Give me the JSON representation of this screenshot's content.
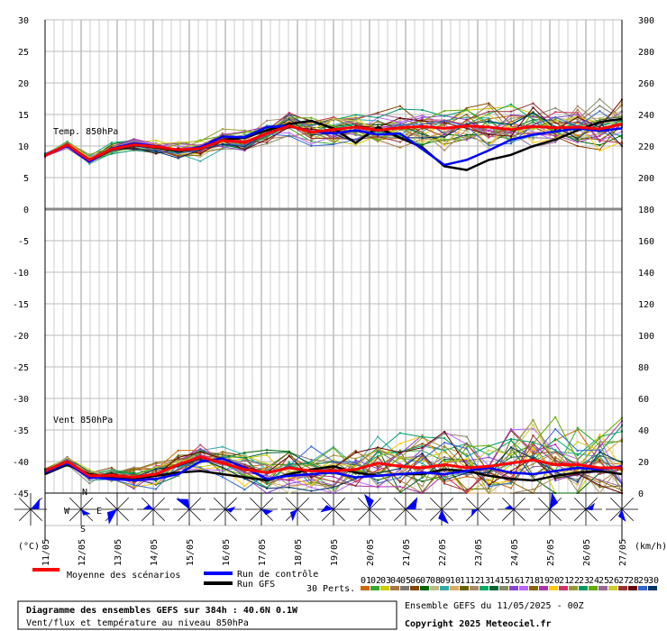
{
  "chart_data": {
    "type": "line",
    "title": "Diagramme des ensembles GEFS sur 384h : 40.6N 0.1W",
    "subtitle": "Vent/flux et température au niveau 850hPa",
    "left_axis": {
      "unit": "(°C)",
      "ticks": [
        30,
        25,
        20,
        15,
        10,
        5,
        0,
        -5,
        -10,
        -15,
        -20,
        -25,
        -30,
        -35,
        -40,
        -45
      ]
    },
    "right_axis": {
      "unit": "(km/h)",
      "ticks": [
        300,
        280,
        260,
        240,
        220,
        200,
        180,
        160,
        140,
        120,
        100,
        80,
        60,
        40,
        20,
        0
      ]
    },
    "dates": [
      "11/05",
      "12/05",
      "13/05",
      "14/05",
      "15/05",
      "16/05",
      "17/05",
      "18/05",
      "19/05",
      "20/05",
      "21/05",
      "22/05",
      "23/05",
      "24/05",
      "25/05",
      "26/05",
      "27/05"
    ],
    "panel_labels": {
      "temp": "Temp. 850hPa",
      "wind": "Vent 850hPa"
    },
    "compass": {
      "n": "N",
      "w": "W",
      "e": "E",
      "s": "S"
    },
    "series": [
      {
        "name": "Moyenne des scénarios",
        "color": "#ff0000",
        "temp": [
          8.5,
          10.2,
          7.8,
          9.5,
          10.2,
          9.9,
          9.4,
          9.6,
          10.9,
          10.6,
          12.0,
          13.2,
          12.2,
          12.6,
          13.0,
          12.5,
          12.9,
          13.1,
          12.8,
          13.2,
          13.0,
          12.6,
          13.1,
          12.9,
          13.0,
          12.7,
          13.5
        ],
        "wind": [
          14,
          20,
          11,
          11,
          10,
          12,
          18,
          23,
          19,
          15,
          13,
          16,
          14,
          14,
          15,
          19,
          17,
          16,
          18,
          16,
          17,
          19,
          21,
          18,
          18,
          16,
          16
        ]
      },
      {
        "name": "Run de contrôle",
        "color": "#0000ff",
        "temp": [
          8.5,
          10.0,
          7.5,
          9.6,
          10.4,
          10.0,
          9.3,
          9.8,
          11.5,
          11.4,
          13.0,
          13.2,
          12.3,
          12.0,
          12.5,
          11.8,
          12.0,
          9.5,
          7.0,
          7.8,
          9.3,
          11.0,
          11.8,
          12.3,
          12.8,
          12.4,
          12.8
        ],
        "wind": [
          13,
          19,
          10,
          9,
          8,
          9,
          12,
          20,
          22,
          16,
          9,
          11,
          12,
          13,
          10,
          11,
          12,
          13,
          12,
          14,
          16,
          13,
          12,
          14,
          16,
          15,
          17
        ]
      },
      {
        "name": "Run GFS",
        "color": "#000000",
        "temp": [
          8.5,
          10.1,
          7.6,
          9.4,
          10.1,
          9.8,
          9.2,
          9.6,
          11.0,
          11.3,
          12.5,
          13.5,
          14.0,
          12.8,
          10.5,
          13.0,
          11.3,
          9.8,
          6.8,
          6.2,
          7.8,
          8.6,
          10.0,
          11.0,
          12.5,
          13.8,
          14.3
        ],
        "wind": [
          12,
          18,
          12,
          10,
          9,
          11,
          13,
          14,
          12,
          10,
          8,
          12,
          15,
          17,
          13,
          11,
          12,
          12,
          15,
          14,
          11,
          9,
          8,
          11,
          13,
          14,
          12
        ]
      }
    ],
    "perturbations_count": 30,
    "perturbation_colors": [
      "#cc6600",
      "#33aa33",
      "#cccc00",
      "#aa7744",
      "#777777",
      "#884400",
      "#006600",
      "#bbbb88",
      "#33aaaa",
      "#ddaa66",
      "#666600",
      "#aa8866",
      "#00aa66",
      "#006633",
      "#888866",
      "#8844cc",
      "#bb66ff",
      "#886600",
      "#aa33aa",
      "#ffcc00",
      "#cc3366",
      "#999933",
      "#009966",
      "#66aa00",
      "#996699",
      "#cccc33",
      "#993333",
      "#660000",
      "#3366cc",
      "#003366"
    ]
  },
  "legend": {
    "perts_label": "30 Perts.",
    "pert_numbers": [
      "01",
      "02",
      "03",
      "04",
      "05",
      "06",
      "07",
      "08",
      "09",
      "10",
      "11",
      "12",
      "13",
      "14",
      "15",
      "16",
      "17",
      "18",
      "19",
      "20",
      "21",
      "22",
      "23",
      "24",
      "25",
      "26",
      "27",
      "28",
      "29",
      "30"
    ]
  },
  "footer": {
    "line1": "Diagramme des ensembles GEFS sur 384h : 40.6N 0.1W",
    "line2": "Vent/flux et température au niveau 850hPa",
    "ensemble": "Ensemble GEFS du 11/05/2025 - 00Z",
    "copyright": "Copyright 2025 Meteociel.fr"
  }
}
